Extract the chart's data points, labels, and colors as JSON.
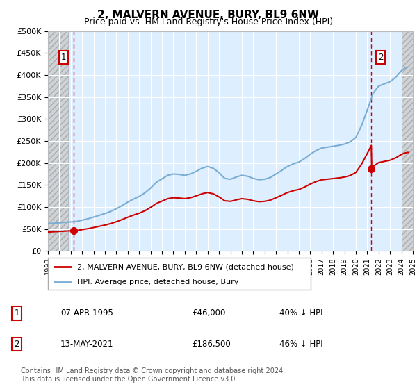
{
  "title": "2, MALVERN AVENUE, BURY, BL9 6NW",
  "subtitle": "Price paid vs. HM Land Registry's House Price Index (HPI)",
  "ylim": [
    0,
    500000
  ],
  "xlim": [
    1993,
    2025
  ],
  "hpi_color": "#7aadd4",
  "price_color": "#cc0000",
  "vline_color": "#cc0000",
  "background_plot": "#ddeeff",
  "transaction1_date": 1995.27,
  "transaction1_price": 46000,
  "transaction2_date": 2021.37,
  "transaction2_price": 186500,
  "legend_label1": "2, MALVERN AVENUE, BURY, BL9 6NW (detached house)",
  "legend_label2": "HPI: Average price, detached house, Bury",
  "table_row1": [
    "1",
    "07-APR-1995",
    "£46,000",
    "40% ↓ HPI"
  ],
  "table_row2": [
    "2",
    "13-MAY-2021",
    "£186,500",
    "46% ↓ HPI"
  ],
  "footnote": "Contains HM Land Registry data © Crown copyright and database right 2024.\nThis data is licensed under the Open Government Licence v3.0.",
  "hpi_x": [
    1993.0,
    1993.25,
    1993.5,
    1993.75,
    1994.0,
    1994.25,
    1994.5,
    1994.75,
    1995.0,
    1995.25,
    1995.5,
    1995.75,
    1996.0,
    1996.25,
    1996.5,
    1996.75,
    1997.0,
    1997.25,
    1997.5,
    1997.75,
    1998.0,
    1998.25,
    1998.5,
    1998.75,
    1999.0,
    1999.25,
    1999.5,
    1999.75,
    2000.0,
    2000.25,
    2000.5,
    2000.75,
    2001.0,
    2001.25,
    2001.5,
    2001.75,
    2002.0,
    2002.25,
    2002.5,
    2002.75,
    2003.0,
    2003.25,
    2003.5,
    2003.75,
    2004.0,
    2004.25,
    2004.5,
    2004.75,
    2005.0,
    2005.25,
    2005.5,
    2005.75,
    2006.0,
    2006.25,
    2006.5,
    2006.75,
    2007.0,
    2007.25,
    2007.5,
    2007.75,
    2008.0,
    2008.25,
    2008.5,
    2008.75,
    2009.0,
    2009.25,
    2009.5,
    2009.75,
    2010.0,
    2010.25,
    2010.5,
    2010.75,
    2011.0,
    2011.25,
    2011.5,
    2011.75,
    2012.0,
    2012.25,
    2012.5,
    2012.75,
    2013.0,
    2013.25,
    2013.5,
    2013.75,
    2014.0,
    2014.25,
    2014.5,
    2014.75,
    2015.0,
    2015.25,
    2015.5,
    2015.75,
    2016.0,
    2016.25,
    2016.5,
    2016.75,
    2017.0,
    2017.25,
    2017.5,
    2017.75,
    2018.0,
    2018.25,
    2018.5,
    2018.75,
    2019.0,
    2019.25,
    2019.5,
    2019.75,
    2020.0,
    2020.25,
    2020.5,
    2020.75,
    2021.0,
    2021.25,
    2021.5,
    2021.75,
    2022.0,
    2022.25,
    2022.5,
    2022.75,
    2023.0,
    2023.25,
    2023.5,
    2023.75,
    2024.0,
    2024.25,
    2024.5
  ],
  "hpi_y": [
    62000,
    62500,
    63000,
    63500,
    64000,
    64500,
    65000,
    65500,
    66000,
    66500,
    67000,
    68500,
    70000,
    71500,
    73000,
    75000,
    77000,
    79000,
    81000,
    83000,
    85000,
    87500,
    90000,
    93000,
    96000,
    99500,
    103000,
    107000,
    111000,
    114500,
    118000,
    121000,
    124000,
    128000,
    132000,
    137500,
    143000,
    149500,
    156000,
    160000,
    164000,
    168000,
    172000,
    173500,
    175000,
    174500,
    174000,
    173000,
    172000,
    173500,
    175000,
    178000,
    181000,
    184500,
    188000,
    190000,
    192000,
    190000,
    188000,
    183000,
    178000,
    171500,
    165000,
    164000,
    163000,
    165500,
    168000,
    170000,
    172000,
    171000,
    170000,
    167500,
    165000,
    163500,
    162000,
    162500,
    163000,
    165000,
    167000,
    171000,
    175000,
    179000,
    183000,
    188000,
    192000,
    195000,
    198000,
    200000,
    202000,
    206000,
    210000,
    215000,
    220000,
    224000,
    228000,
    231000,
    234000,
    235000,
    236000,
    237000,
    238000,
    239000,
    240000,
    241500,
    243000,
    245500,
    248000,
    253000,
    258000,
    271500,
    285000,
    302500,
    320000,
    339000,
    358000,
    366500,
    375000,
    377500,
    380000,
    382500,
    385000,
    390000,
    395000,
    402500,
    410000,
    415000,
    418000
  ]
}
